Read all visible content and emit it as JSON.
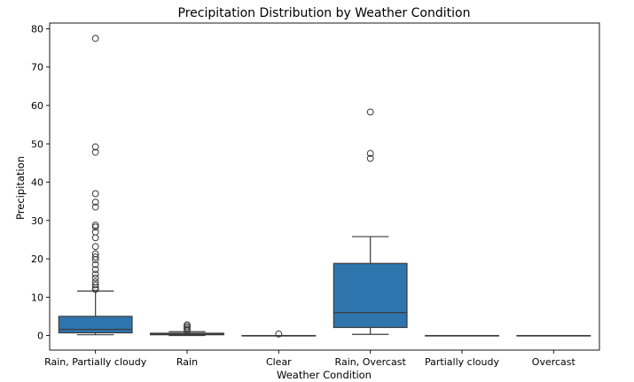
{
  "chart_data": {
    "type": "box",
    "title": "Precipitation Distribution by Weather Condition",
    "xlabel": "Weather Condition",
    "ylabel": "Precipitation",
    "ylim": [
      -3.8,
      81.5
    ],
    "yticks": [
      0,
      10,
      20,
      30,
      40,
      50,
      60,
      70,
      80
    ],
    "grid": false,
    "box_color": "#2e75ad",
    "line_color": "#3b3b3b",
    "categories": [
      "Rain, Partially cloudy",
      "Rain",
      "Clear",
      "Rain, Overcast",
      "Partially cloudy",
      "Overcast"
    ],
    "boxes": [
      {
        "whislo": 0.2,
        "q1": 0.7,
        "med": 1.6,
        "q3": 5.0,
        "whishi": 11.6,
        "fliers": [
          12.0,
          12.5,
          13.2,
          14.0,
          15.0,
          16.0,
          17.2,
          18.5,
          19.8,
          20.5,
          21.3,
          23.2,
          25.5,
          27.0,
          28.3,
          28.8,
          33.5,
          34.8,
          37.0,
          47.8,
          49.2,
          77.5
        ]
      },
      {
        "whislo": 0.0,
        "q1": 0.2,
        "med": 0.35,
        "q3": 0.6,
        "whishi": 1.0,
        "fliers": [
          1.3,
          1.6,
          2.0,
          2.4,
          2.8
        ]
      },
      {
        "whislo": 0.0,
        "q1": 0.0,
        "med": 0.0,
        "q3": 0.0,
        "whishi": 0.0,
        "fliers": [
          0.4
        ]
      },
      {
        "whislo": 0.3,
        "q1": 2.1,
        "med": 6.0,
        "q3": 18.8,
        "whishi": 25.8,
        "fliers": [
          46.2,
          47.5,
          58.3
        ]
      },
      {
        "whislo": 0.0,
        "q1": 0.0,
        "med": 0.0,
        "q3": 0.0,
        "whishi": 0.0,
        "fliers": []
      },
      {
        "whislo": 0.0,
        "q1": 0.0,
        "med": 0.0,
        "q3": 0.0,
        "whishi": 0.0,
        "fliers": []
      }
    ]
  }
}
